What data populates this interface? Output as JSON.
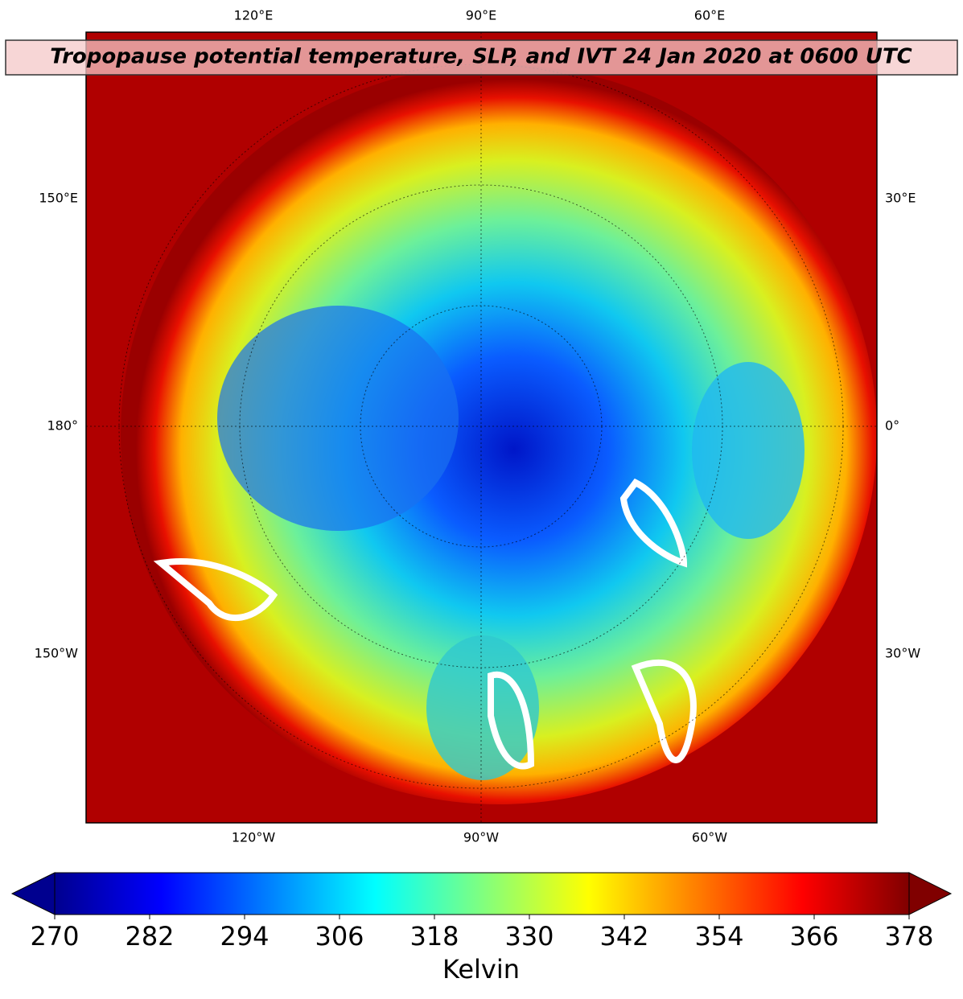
{
  "title": "Tropopause potential temperature, SLP, and IVT 24 Jan 2020 at 0600 UTC",
  "map": {
    "top_labels": [
      "120°E",
      "90°E",
      "60°E"
    ],
    "bottom_labels": [
      "120°W",
      "90°W",
      "60°W"
    ],
    "left_labels": [
      "150°E",
      "180°",
      "150°W"
    ],
    "right_labels": [
      "30°E",
      "0°",
      "30°W"
    ]
  },
  "colorbar": {
    "label": "Kelvin",
    "lim": [
      270,
      378
    ],
    "ticks": [
      270,
      282,
      294,
      306,
      318,
      330,
      342,
      354,
      366,
      378
    ]
  }
}
